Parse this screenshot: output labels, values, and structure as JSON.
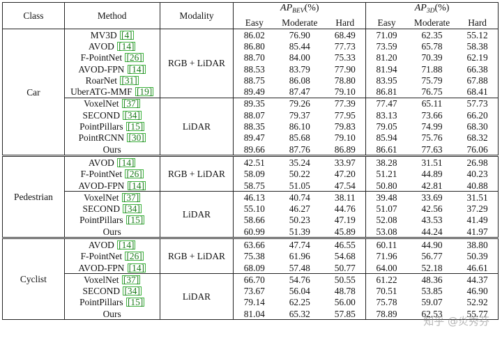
{
  "headers": {
    "class": "Class",
    "method": "Method",
    "modality": "Modality",
    "ap_bev_base": "AP",
    "ap_bev_sub": "BEV",
    "ap_3d_base": "AP",
    "ap_3d_sub": "3D",
    "pct": "(%)",
    "easy": "Easy",
    "moderate": "Moderate",
    "hard": "Hard"
  },
  "groups": [
    {
      "class": "Car",
      "blocks": [
        {
          "modality": "RGB + LiDAR",
          "rows": [
            {
              "method": "MV3D",
              "cite": "[4]",
              "values": [
                "86.02",
                "76.90",
                "68.49",
                "71.09",
                "62.35",
                "55.12"
              ],
              "bold": []
            },
            {
              "method": "AVOD",
              "cite": "[14]",
              "values": [
                "86.80",
                "85.44",
                "77.73",
                "73.59",
                "65.78",
                "58.38"
              ],
              "bold": []
            },
            {
              "method": "F-PointNet",
              "cite": "[26]",
              "values": [
                "88.70",
                "84.00",
                "75.33",
                "81.20",
                "70.39",
                "62.19"
              ],
              "bold": []
            },
            {
              "method": "AVOD-FPN",
              "cite": "[14]",
              "values": [
                "88.53",
                "83.79",
                "77.90",
                "81.94",
                "71.88",
                "66.38"
              ],
              "bold": []
            },
            {
              "method": "RoarNet",
              "cite": "[31]",
              "values": [
                "88.75",
                "86.08",
                "78.80",
                "83.95",
                "75.79",
                "67.88"
              ],
              "bold": []
            },
            {
              "method": "UberATG-MMF",
              "cite": "[19]",
              "values": [
                "89.49",
                "87.47",
                "79.10",
                "86.81",
                "76.75",
                "68.41"
              ],
              "bold": [
                3
              ]
            }
          ]
        },
        {
          "modality": "LiDAR",
          "rows": [
            {
              "method": "VoxelNet",
              "cite": "[37]",
              "values": [
                "89.35",
                "79.26",
                "77.39",
                "77.47",
                "65.11",
                "57.73"
              ],
              "bold": []
            },
            {
              "method": "SECOND",
              "cite": "[34]",
              "values": [
                "88.07",
                "79.37",
                "77.95",
                "83.13",
                "73.66",
                "66.20"
              ],
              "bold": []
            },
            {
              "method": "PointPillars",
              "cite": "[15]",
              "values": [
                "88.35",
                "86.10",
                "79.83",
                "79.05",
                "74.99",
                "68.30"
              ],
              "bold": []
            },
            {
              "method": "PointRCNN",
              "cite": "[30]",
              "values": [
                "89.47",
                "85.68",
                "79.10",
                "85.94",
                "75.76",
                "68.32"
              ],
              "bold": []
            },
            {
              "method": "Ours",
              "cite": "",
              "values": [
                "89.66",
                "87.76",
                "86.89",
                "86.61",
                "77.63",
                "76.06"
              ],
              "bold": [
                0,
                1,
                2,
                4,
                5
              ]
            }
          ]
        }
      ]
    },
    {
      "class": "Pedestrian",
      "blocks": [
        {
          "modality": "RGB + LiDAR",
          "rows": [
            {
              "method": "AVOD",
              "cite": "[14]",
              "values": [
                "42.51",
                "35.24",
                "33.97",
                "38.28",
                "31.51",
                "26.98"
              ],
              "bold": []
            },
            {
              "method": "F-PointNet",
              "cite": "[26]",
              "values": [
                "58.09",
                "50.22",
                "47.20",
                "51.21",
                "44.89",
                "40.23"
              ],
              "bold": [
                4
              ]
            },
            {
              "method": "AVOD-FPN",
              "cite": "[14]",
              "values": [
                "58.75",
                "51.05",
                "47.54",
                "50.80",
                "42.81",
                "40.88"
              ],
              "bold": [
                2
              ]
            }
          ]
        },
        {
          "modality": "LiDAR",
          "rows": [
            {
              "method": "VoxelNet",
              "cite": "[37]",
              "values": [
                "46.13",
                "40.74",
                "38.11",
                "39.48",
                "33.69",
                "31.51"
              ],
              "bold": []
            },
            {
              "method": "SECOND",
              "cite": "[34]",
              "values": [
                "55.10",
                "46.27",
                "44.76",
                "51.07",
                "42.56",
                "37.29"
              ],
              "bold": []
            },
            {
              "method": "PointPillars",
              "cite": "[15]",
              "values": [
                "58.66",
                "50.23",
                "47.19",
                "52.08",
                "43.53",
                "41.49"
              ],
              "bold": []
            },
            {
              "method": "Ours",
              "cite": "",
              "values": [
                "60.99",
                "51.39",
                "45.89",
                "53.08",
                "44.24",
                "41.97"
              ],
              "bold": [
                0,
                1,
                3,
                5
              ]
            }
          ]
        }
      ]
    },
    {
      "class": "Cyclist",
      "blocks": [
        {
          "modality": "RGB + LiDAR",
          "rows": [
            {
              "method": "AVOD",
              "cite": "[14]",
              "values": [
                "63.66",
                "47.74",
                "46.55",
                "60.11",
                "44.90",
                "38.80"
              ],
              "bold": []
            },
            {
              "method": "F-PointNet",
              "cite": "[26]",
              "values": [
                "75.38",
                "61.96",
                "54.68",
                "71.96",
                "56.77",
                "50.39"
              ],
              "bold": []
            },
            {
              "method": "AVOD-FPN",
              "cite": "[14]",
              "values": [
                "68.09",
                "57.48",
                "50.77",
                "64.00",
                "52.18",
                "46.61"
              ],
              "bold": []
            }
          ]
        },
        {
          "modality": "LiDAR",
          "rows": [
            {
              "method": "VoxelNet",
              "cite": "[37]",
              "values": [
                "66.70",
                "54.76",
                "50.55",
                "61.22",
                "48.36",
                "44.37"
              ],
              "bold": []
            },
            {
              "method": "SECOND",
              "cite": "[34]",
              "values": [
                "73.67",
                "56.04",
                "48.78",
                "70.51",
                "53.85",
                "46.90"
              ],
              "bold": []
            },
            {
              "method": "PointPillars",
              "cite": "[15]",
              "values": [
                "79.14",
                "62.25",
                "56.00",
                "75.78",
                "59.07",
                "52.92"
              ],
              "bold": []
            },
            {
              "method": "Ours",
              "cite": "",
              "values": [
                "81.04",
                "65.32",
                "57.85",
                "78.89",
                "62.53",
                "55.77"
              ],
              "bold": [
                0,
                1,
                2,
                3,
                4,
                5
              ]
            }
          ]
        }
      ]
    }
  ],
  "watermark": "知乎 @炎秀芬"
}
